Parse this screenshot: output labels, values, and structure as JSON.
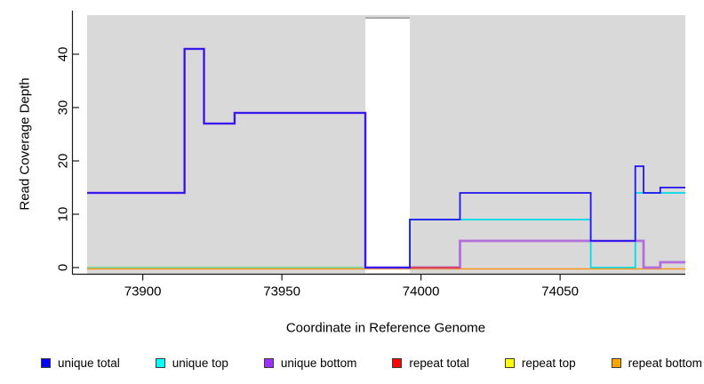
{
  "figure": {
    "background": "#ffffff",
    "panel_background": "#d9d9d9"
  },
  "y_axis": {
    "label": "Read Coverage Depth",
    "ticks": [
      0,
      10,
      20,
      30,
      40
    ]
  },
  "x_axis": {
    "label": "Coordinate in Reference Genome",
    "ticks": [
      73900,
      73950,
      74000,
      74050
    ]
  },
  "chart_data": {
    "type": "line",
    "title": "",
    "xlabel": "Coordinate in Reference Genome",
    "ylabel": "Read Coverage Depth",
    "xlim": [
      73880,
      74095
    ],
    "ylim": [
      0,
      47
    ],
    "grid": false,
    "legend_position": "bottom-horizontal",
    "panel_background": "#d9d9d9",
    "gap_region": {
      "x1": 73980,
      "x2": 73996,
      "top": 46.8,
      "fill": "#ffffff",
      "border": "#999999"
    },
    "series": [
      {
        "name": "unique total",
        "legend_color": "#0000ff",
        "line_color": "#2212f0",
        "line_width": 1.8,
        "points": [
          [
            73880,
            14
          ],
          [
            73915,
            14
          ],
          [
            73915,
            41
          ],
          [
            73922,
            41
          ],
          [
            73922,
            27
          ],
          [
            73933,
            27
          ],
          [
            73933,
            29
          ],
          [
            73980,
            29
          ],
          [
            73980,
            0
          ],
          [
            73996,
            0
          ],
          [
            73996,
            9
          ],
          [
            74014,
            9
          ],
          [
            74014,
            14
          ],
          [
            74061,
            14
          ],
          [
            74061,
            5
          ],
          [
            74077,
            5
          ],
          [
            74077,
            19
          ],
          [
            74080,
            19
          ],
          [
            74080,
            14
          ],
          [
            74086,
            14
          ],
          [
            74086,
            15
          ],
          [
            74095,
            15
          ]
        ]
      },
      {
        "name": "unique top",
        "legend_color": "#00ffff",
        "line_color": "#00dde8",
        "line_width": 1.8,
        "points": [
          [
            73880,
            0
          ],
          [
            73996,
            0
          ],
          [
            73996,
            9
          ],
          [
            74061,
            9
          ],
          [
            74061,
            0
          ],
          [
            74077,
            0
          ],
          [
            74077,
            14
          ],
          [
            74095,
            14
          ]
        ]
      },
      {
        "name": "unique bottom",
        "legend_color": "#9b30ff",
        "line_color": "#b36fd9",
        "line_width": 2.8,
        "points": [
          [
            73880,
            14
          ],
          [
            73915,
            14
          ],
          [
            73915,
            41
          ],
          [
            73922,
            41
          ],
          [
            73922,
            27
          ],
          [
            73933,
            27
          ],
          [
            73933,
            29
          ],
          [
            73980,
            29
          ],
          [
            73980,
            0
          ],
          [
            74014,
            0
          ],
          [
            74014,
            5
          ],
          [
            74080,
            5
          ],
          [
            74080,
            0
          ],
          [
            74086,
            0
          ],
          [
            74086,
            1
          ],
          [
            74095,
            1
          ]
        ]
      },
      {
        "name": "repeat total",
        "legend_color": "#ff0000",
        "line_color": "#dc3d52",
        "line_width": 1.8,
        "points": [
          [
            73880,
            0
          ],
          [
            74095,
            0
          ]
        ]
      },
      {
        "name": "repeat top",
        "legend_color": "#ffff00",
        "line_color": "#e8e84a",
        "line_width": 1.6,
        "points": [
          [
            73880,
            0
          ],
          [
            74095,
            0
          ]
        ]
      },
      {
        "name": "repeat bottom",
        "legend_color": "#ffa500",
        "line_color": "#ff9414",
        "line_width": 1.6,
        "points": [
          [
            73880,
            0
          ],
          [
            74095,
            0
          ]
        ]
      }
    ],
    "render_lines": [
      {
        "series": "unique top"
      },
      {
        "name": "repeat-bottom-baseline",
        "color": "#ff9414",
        "width": 1.6,
        "dy": 1.5,
        "points": [
          [
            73880,
            0
          ],
          [
            74095,
            0
          ]
        ]
      },
      {
        "name": "unique-top-repeat-top-blend-baseline",
        "color": "#8fd08f",
        "width": 1.8,
        "dy": 0,
        "points": [
          [
            73880,
            0
          ],
          [
            73980,
            0
          ]
        ]
      },
      {
        "series": "unique bottom"
      },
      {
        "name": "repeat-total-baseline",
        "color": "#dc3d52",
        "width": 1.8,
        "dy": 0,
        "points": [
          [
            73996,
            0
          ],
          [
            74014,
            0
          ]
        ]
      },
      {
        "series": "unique total"
      }
    ]
  },
  "legend": {
    "items": [
      {
        "label": "unique total",
        "color": "#0000ff"
      },
      {
        "label": "unique top",
        "color": "#00ffff"
      },
      {
        "label": "unique bottom",
        "color": "#9b30ff"
      },
      {
        "label": "repeat total",
        "color": "#ff0000"
      },
      {
        "label": "repeat top",
        "color": "#ffff00"
      },
      {
        "label": "repeat bottom",
        "color": "#ffa500"
      }
    ]
  }
}
